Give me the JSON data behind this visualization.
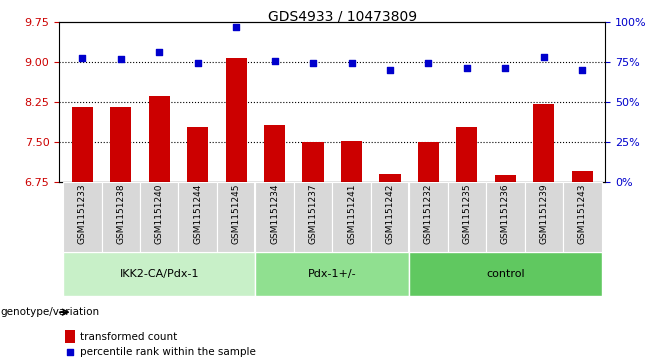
{
  "title": "GDS4933 / 10473809",
  "samples": [
    "GSM1151233",
    "GSM1151238",
    "GSM1151240",
    "GSM1151244",
    "GSM1151245",
    "GSM1151234",
    "GSM1151237",
    "GSM1151241",
    "GSM1151242",
    "GSM1151232",
    "GSM1151235",
    "GSM1151236",
    "GSM1151239",
    "GSM1151243"
  ],
  "bar_values": [
    8.15,
    8.15,
    8.35,
    7.78,
    9.07,
    7.82,
    7.5,
    7.52,
    6.9,
    7.5,
    7.78,
    6.87,
    8.2,
    6.95
  ],
  "dot_values": [
    9.07,
    9.05,
    9.18,
    8.98,
    9.65,
    9.02,
    8.98,
    8.98,
    8.85,
    8.98,
    8.88,
    8.88,
    9.08,
    8.85
  ],
  "groups": [
    {
      "label": "IKK2-CA/Pdx-1",
      "start": 0,
      "end": 5,
      "color": "#c8f0c8"
    },
    {
      "label": "Pdx-1+/-",
      "start": 5,
      "end": 9,
      "color": "#90e090"
    },
    {
      "label": "control",
      "start": 9,
      "end": 14,
      "color": "#60c860"
    }
  ],
  "ylim_left": [
    6.75,
    9.75
  ],
  "ylim_right": [
    0,
    100
  ],
  "yticks_left": [
    6.75,
    7.5,
    8.25,
    9.0,
    9.75
  ],
  "yticks_right": [
    0,
    25,
    50,
    75,
    100
  ],
  "bar_color": "#cc0000",
  "dot_color": "#0000cc",
  "bar_baseline": 6.75,
  "ylabel_left_color": "#cc0000",
  "ylabel_right_color": "#0000cc",
  "legend_bar_label": "transformed count",
  "legend_dot_label": "percentile rank within the sample",
  "genotype_label": "genotype/variation",
  "sample_bg_color": "#d8d8d8",
  "plot_bg": "#ffffff",
  "hline_ticks": [
    7.5,
    8.25,
    9.0
  ]
}
